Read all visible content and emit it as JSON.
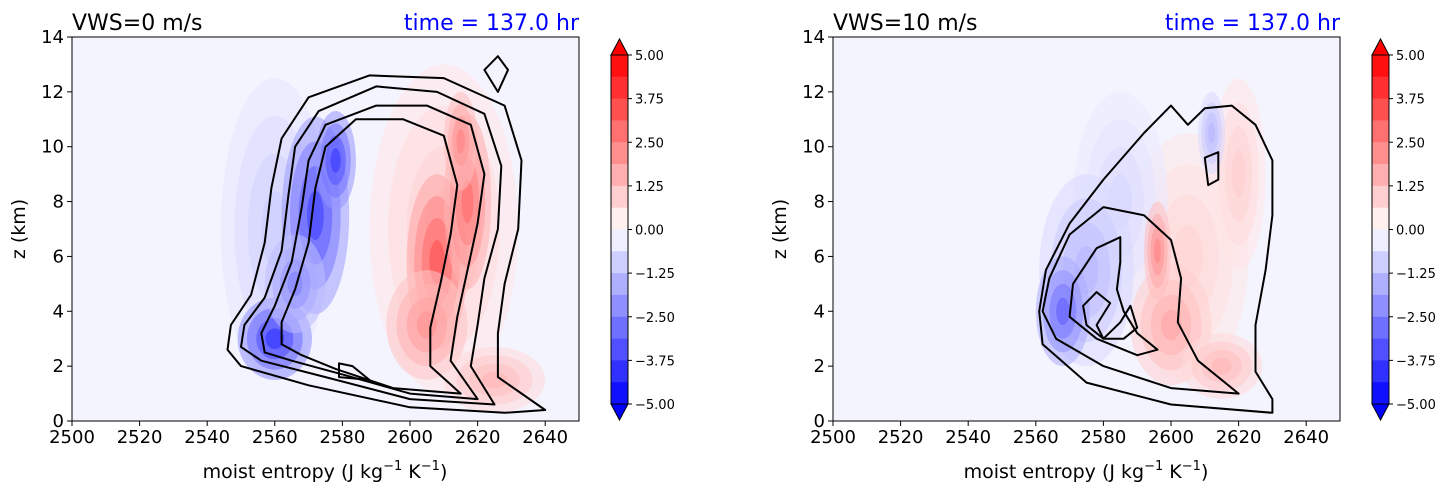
{
  "chart_data": [
    {
      "type": "heatmap",
      "title": "VWS=0 m/s",
      "subtitle": "time = 137.0 hr",
      "xlabel": "moist entropy (J kg",
      "xlabel_sup1": "−1",
      "xlabel_mid": " K",
      "xlabel_sup2": "−1",
      "xlabel_end": ")",
      "ylabel": "z (km)",
      "xlim": [
        2500,
        2650
      ],
      "ylim": [
        0,
        14
      ],
      "xticks": [
        "2500",
        "2520",
        "2540",
        "2560",
        "2580",
        "2600",
        "2620",
        "2640"
      ],
      "yticks": [
        "0",
        "2",
        "4",
        "6",
        "8",
        "10",
        "12",
        "14"
      ],
      "colorbar": {
        "range": [
          -5.0,
          5.0
        ],
        "ticks": [
          "5.00",
          "3.75",
          "2.50",
          "1.25",
          "0.00",
          "−1.25",
          "−2.50",
          "−3.75",
          "−5.00"
        ],
        "low_color": "#0000ff",
        "high_color": "#ff0000"
      },
      "fill_blobs": [
        {
          "x": 2572,
          "z": 7.5,
          "rx": 10,
          "rz": 3.6,
          "value": -3.8
        },
        {
          "x": 2560,
          "z": 3.0,
          "rx": 11,
          "rz": 1.5,
          "value": -4.2
        },
        {
          "x": 2566,
          "z": 5.0,
          "rx": 9,
          "rz": 1.8,
          "value": -2.5
        },
        {
          "x": 2578,
          "z": 9.5,
          "rx": 6,
          "rz": 1.8,
          "value": -4.0
        },
        {
          "x": 2560,
          "z": 7.0,
          "rx": 16,
          "rz": 5.5,
          "value": -1.0
        },
        {
          "x": 2608,
          "z": 5.8,
          "rx": 9,
          "rz": 3.2,
          "value": 3.5
        },
        {
          "x": 2617,
          "z": 8.0,
          "rx": 7,
          "rz": 3.2,
          "value": 3.0
        },
        {
          "x": 2605,
          "z": 3.5,
          "rx": 12,
          "rz": 2.0,
          "value": 2.2
        },
        {
          "x": 2615,
          "z": 10.2,
          "rx": 5,
          "rz": 1.8,
          "value": 2.5
        },
        {
          "x": 2610,
          "z": 7.0,
          "rx": 22,
          "rz": 6.0,
          "value": 1.0
        },
        {
          "x": 2625,
          "z": 1.5,
          "rx": 15,
          "rz": 1.2,
          "value": 1.5
        }
      ],
      "contours": [
        [
          [
            2620,
            0.8
          ],
          [
            2600,
            1.0
          ],
          [
            2580,
            1.7
          ],
          [
            2565,
            2.2
          ],
          [
            2557,
            2.5
          ],
          [
            2556,
            3.2
          ],
          [
            2560,
            4.2
          ],
          [
            2565,
            5.8
          ],
          [
            2568,
            7.8
          ],
          [
            2570,
            9.5
          ],
          [
            2575,
            10.8
          ],
          [
            2590,
            11.5
          ],
          [
            2605,
            11.5
          ],
          [
            2618,
            10.8
          ],
          [
            2622,
            9.0
          ],
          [
            2620,
            7.2
          ],
          [
            2617,
            5.5
          ],
          [
            2614,
            3.8
          ],
          [
            2612,
            2.2
          ],
          [
            2620,
            0.8
          ]
        ],
        [
          [
            2625,
            0.6
          ],
          [
            2600,
            0.8
          ],
          [
            2575,
            1.6
          ],
          [
            2556,
            2.2
          ],
          [
            2550,
            2.7
          ],
          [
            2551,
            3.5
          ],
          [
            2557,
            4.5
          ],
          [
            2562,
            6.2
          ],
          [
            2564,
            8.2
          ],
          [
            2566,
            10.0
          ],
          [
            2573,
            11.3
          ],
          [
            2590,
            12.2
          ],
          [
            2608,
            12.0
          ],
          [
            2622,
            11.2
          ],
          [
            2627,
            9.3
          ],
          [
            2626,
            7.0
          ],
          [
            2622,
            5.2
          ],
          [
            2620,
            3.5
          ],
          [
            2618,
            2.0
          ],
          [
            2625,
            0.6
          ]
        ],
        [
          [
            2615,
            1.0
          ],
          [
            2595,
            1.2
          ],
          [
            2578,
            1.9
          ],
          [
            2568,
            2.4
          ],
          [
            2562,
            2.8
          ],
          [
            2562,
            3.6
          ],
          [
            2566,
            4.8
          ],
          [
            2570,
            6.5
          ],
          [
            2572,
            8.5
          ],
          [
            2575,
            10.0
          ],
          [
            2584,
            11.0
          ],
          [
            2598,
            11.0
          ],
          [
            2610,
            10.4
          ],
          [
            2614,
            8.6
          ],
          [
            2612,
            6.8
          ],
          [
            2609,
            5.0
          ],
          [
            2606,
            3.4
          ],
          [
            2606,
            2.0
          ],
          [
            2615,
            1.0
          ]
        ],
        [
          [
            2628,
            0.3
          ],
          [
            2600,
            0.5
          ],
          [
            2570,
            1.3
          ],
          [
            2550,
            2.0
          ],
          [
            2546,
            2.6
          ],
          [
            2547,
            3.5
          ],
          [
            2553,
            4.6
          ],
          [
            2557,
            6.5
          ],
          [
            2559,
            8.5
          ],
          [
            2562,
            10.3
          ],
          [
            2570,
            11.8
          ],
          [
            2588,
            12.6
          ],
          [
            2610,
            12.5
          ],
          [
            2628,
            11.5
          ],
          [
            2633,
            9.5
          ],
          [
            2632,
            7.0
          ],
          [
            2628,
            5.0
          ],
          [
            2626,
            3.2
          ],
          [
            2626,
            1.6
          ],
          [
            2640,
            0.4
          ],
          [
            2628,
            0.3
          ]
        ],
        [
          [
            2588,
            1.5
          ],
          [
            2579,
            1.6
          ],
          [
            2579,
            2.1
          ],
          [
            2583,
            2.0
          ],
          [
            2588,
            1.5
          ]
        ],
        [
          [
            2622,
            12.8
          ],
          [
            2626,
            13.3
          ],
          [
            2629,
            12.8
          ],
          [
            2626,
            12.0
          ],
          [
            2622,
            12.8
          ]
        ]
      ]
    },
    {
      "type": "heatmap",
      "title": "VWS=10 m/s",
      "subtitle": "time = 137.0 hr",
      "xlabel": "moist entropy (J kg",
      "xlabel_sup1": "−1",
      "xlabel_mid": " K",
      "xlabel_sup2": "−1",
      "xlabel_end": ")",
      "ylabel": "z (km)",
      "xlim": [
        2500,
        2650
      ],
      "ylim": [
        0,
        14
      ],
      "xticks": [
        "2500",
        "2520",
        "2540",
        "2560",
        "2580",
        "2600",
        "2620",
        "2640"
      ],
      "yticks": [
        "0",
        "2",
        "4",
        "6",
        "8",
        "10",
        "12",
        "14"
      ],
      "colorbar": {
        "range": [
          -5.0,
          5.0
        ],
        "ticks": [
          "5.00",
          "3.75",
          "2.50",
          "1.25",
          "0.00",
          "−1.25",
          "−2.50",
          "−3.75",
          "−5.00"
        ],
        "low_color": "#0000ff",
        "high_color": "#ff0000"
      },
      "fill_blobs": [
        {
          "x": 2568,
          "z": 4.0,
          "rx": 8,
          "rz": 2.0,
          "value": -3.2
        },
        {
          "x": 2575,
          "z": 5.5,
          "rx": 14,
          "rz": 3.5,
          "value": -1.5
        },
        {
          "x": 2585,
          "z": 8.0,
          "rx": 14,
          "rz": 4.0,
          "value": -0.8
        },
        {
          "x": 2612,
          "z": 10.5,
          "rx": 4,
          "rz": 1.5,
          "value": -1.5
        },
        {
          "x": 2596,
          "z": 6.2,
          "rx": 4,
          "rz": 1.8,
          "value": 2.5
        },
        {
          "x": 2600,
          "z": 3.5,
          "rx": 12,
          "rz": 2.2,
          "value": 1.8
        },
        {
          "x": 2605,
          "z": 6.0,
          "rx": 18,
          "rz": 4.5,
          "value": 0.9
        },
        {
          "x": 2620,
          "z": 9.0,
          "rx": 8,
          "rz": 3.5,
          "value": 1.0
        },
        {
          "x": 2615,
          "z": 2.0,
          "rx": 12,
          "rz": 1.2,
          "value": 1.5
        }
      ],
      "contours": [
        [
          [
            2578,
            3.5
          ],
          [
            2580,
            3.0
          ],
          [
            2585,
            3.6
          ],
          [
            2588,
            4.2
          ],
          [
            2590,
            3.4
          ],
          [
            2586,
            3.0
          ],
          [
            2580,
            3.0
          ],
          [
            2575,
            3.5
          ],
          [
            2574,
            4.2
          ],
          [
            2578,
            4.7
          ],
          [
            2582,
            4.3
          ],
          [
            2578,
            3.5
          ]
        ],
        [
          [
            2590,
            2.4
          ],
          [
            2578,
            3.0
          ],
          [
            2570,
            3.8
          ],
          [
            2571,
            5.0
          ],
          [
            2578,
            6.3
          ],
          [
            2585,
            6.7
          ],
          [
            2585,
            5.8
          ],
          [
            2584,
            4.8
          ],
          [
            2586,
            4.0
          ],
          [
            2590,
            3.2
          ],
          [
            2596,
            2.6
          ],
          [
            2590,
            2.4
          ]
        ],
        [
          [
            2620,
            1.0
          ],
          [
            2600,
            1.2
          ],
          [
            2580,
            2.0
          ],
          [
            2566,
            3.0
          ],
          [
            2562,
            4.0
          ],
          [
            2564,
            5.2
          ],
          [
            2570,
            6.8
          ],
          [
            2580,
            7.8
          ],
          [
            2592,
            7.5
          ],
          [
            2600,
            6.6
          ],
          [
            2603,
            5.2
          ],
          [
            2602,
            3.6
          ],
          [
            2608,
            2.2
          ],
          [
            2620,
            1.0
          ]
        ],
        [
          [
            2630,
            0.3
          ],
          [
            2600,
            0.6
          ],
          [
            2575,
            1.4
          ],
          [
            2562,
            2.8
          ],
          [
            2561,
            4.0
          ],
          [
            2563,
            5.5
          ],
          [
            2570,
            7.2
          ],
          [
            2580,
            8.8
          ],
          [
            2592,
            10.5
          ],
          [
            2600,
            11.5
          ],
          [
            2605,
            10.8
          ],
          [
            2610,
            11.4
          ],
          [
            2618,
            11.5
          ],
          [
            2625,
            10.8
          ],
          [
            2630,
            9.5
          ],
          [
            2630,
            7.5
          ],
          [
            2628,
            5.5
          ],
          [
            2625,
            3.5
          ],
          [
            2625,
            1.8
          ],
          [
            2630,
            0.8
          ],
          [
            2630,
            0.3
          ]
        ],
        [
          [
            2611,
            8.6
          ],
          [
            2610,
            9.6
          ],
          [
            2614,
            9.8
          ],
          [
            2614,
            8.8
          ],
          [
            2611,
            8.6
          ]
        ]
      ]
    }
  ]
}
